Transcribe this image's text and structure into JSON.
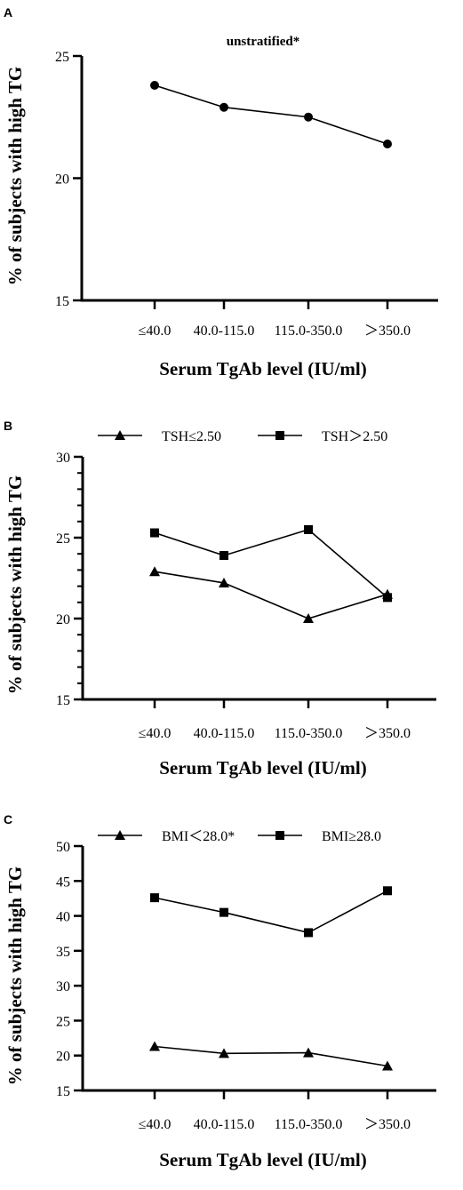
{
  "chart_data": [
    {
      "panel": "A",
      "type": "line",
      "title": "unstratified*",
      "xlabel": "Serum TgAb level (IU/ml)",
      "ylabel": "% of subjects with high TG",
      "categories": [
        "≤40.0",
        "40.0-115.0",
        "115.0-350.0",
        "＞350.0"
      ],
      "ylim": [
        15,
        25
      ],
      "yticks": [
        15,
        20,
        25
      ],
      "minor_ticks": false,
      "grid": false,
      "legend": "none",
      "series": [
        {
          "name": "",
          "marker": "circle",
          "values": [
            23.8,
            22.9,
            22.5,
            21.4
          ]
        }
      ]
    },
    {
      "panel": "B",
      "type": "line",
      "title": "",
      "xlabel": "Serum TgAb level (IU/ml)",
      "ylabel": "% of subjects with high TG",
      "categories": [
        "≤40.0",
        "40.0-115.0",
        "115.0-350.0",
        "＞350.0"
      ],
      "ylim": [
        15,
        30
      ],
      "yticks": [
        15,
        20,
        25,
        30
      ],
      "minor_ticks": true,
      "grid": false,
      "legend": "top",
      "series": [
        {
          "name": "TSH≤2.50",
          "marker": "triangle",
          "values": [
            22.9,
            22.2,
            20.0,
            21.5
          ]
        },
        {
          "name": "TSH＞2.50",
          "marker": "square",
          "values": [
            25.3,
            23.9,
            25.5,
            21.3
          ]
        }
      ]
    },
    {
      "panel": "C",
      "type": "line",
      "title": "",
      "xlabel": "Serum TgAb level (IU/ml)",
      "ylabel": "% of subjects with high TG",
      "categories": [
        "≤40.0",
        "40.0-115.0",
        "115.0-350.0",
        "＞350.0"
      ],
      "ylim": [
        15,
        50
      ],
      "yticks": [
        15,
        20,
        25,
        30,
        35,
        40,
        45,
        50
      ],
      "minor_ticks": false,
      "grid": false,
      "legend": "top",
      "series": [
        {
          "name": "BMI＜28.0*",
          "marker": "triangle",
          "values": [
            21.3,
            20.3,
            20.4,
            18.5
          ]
        },
        {
          "name": "BMI≥28.0",
          "marker": "square",
          "values": [
            42.6,
            40.5,
            37.6,
            43.6
          ]
        }
      ]
    }
  ]
}
